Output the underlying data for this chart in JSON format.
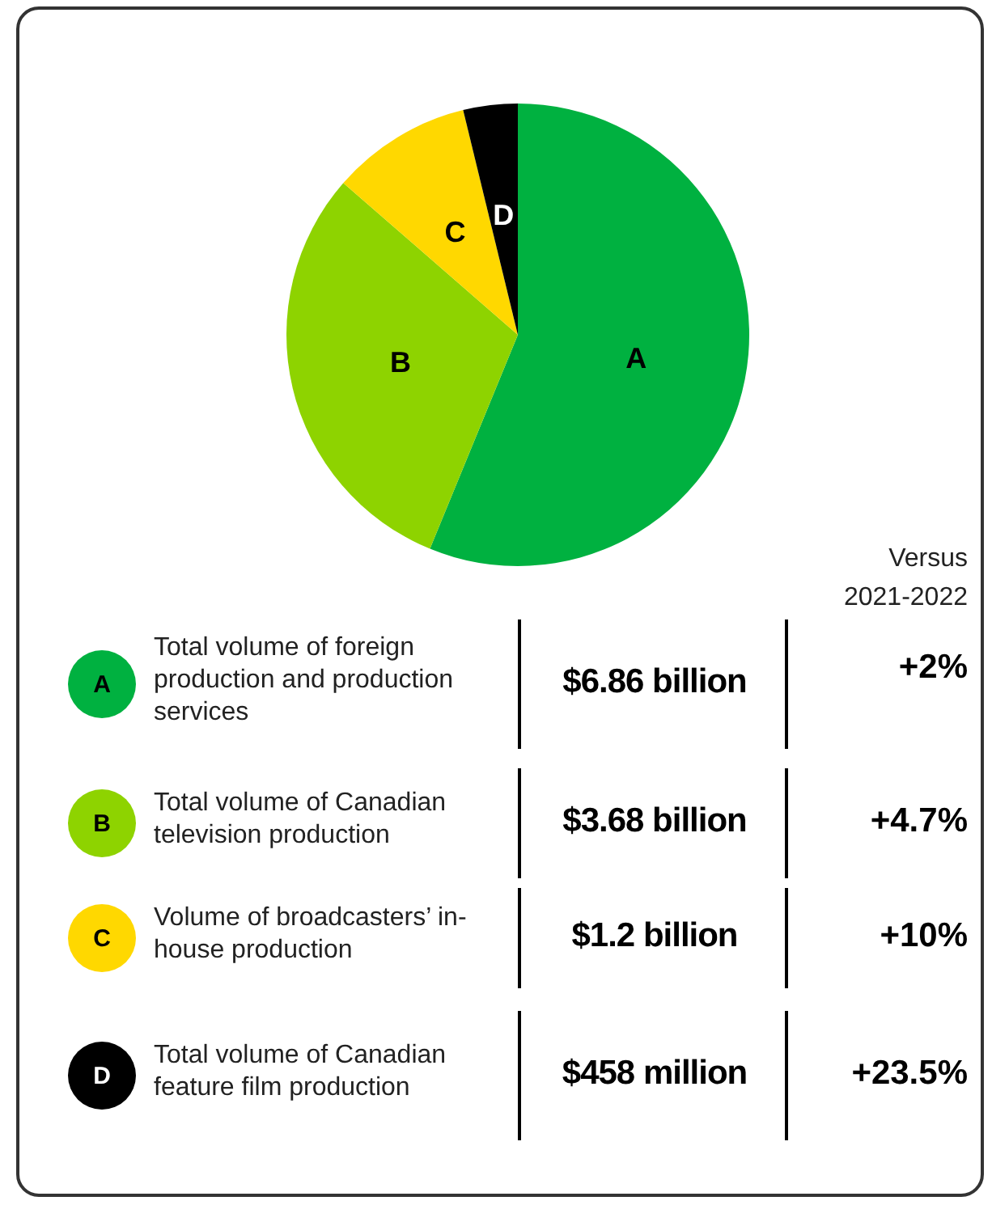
{
  "chart_data": {
    "type": "pie",
    "categories": [
      "A",
      "B",
      "C",
      "D"
    ],
    "values": [
      56.2,
      30.2,
      9.8,
      3.8
    ],
    "colors": [
      "#00b140",
      "#8ed300",
      "#ffd800",
      "#000000"
    ],
    "annotations": [
      "Versus 2021-2022",
      "Total volume of foreign production and production services",
      "Total volume of Canadian television production",
      "Volume of broadcasters’ in-house production",
      "Total volume of Canadian feature film production",
      "$6.86 billion",
      "$3.68 billion",
      "$1.2 billion",
      "$458 million",
      "+2%",
      "+4.7%",
      "+10%",
      "+23.5%"
    ]
  }
}
